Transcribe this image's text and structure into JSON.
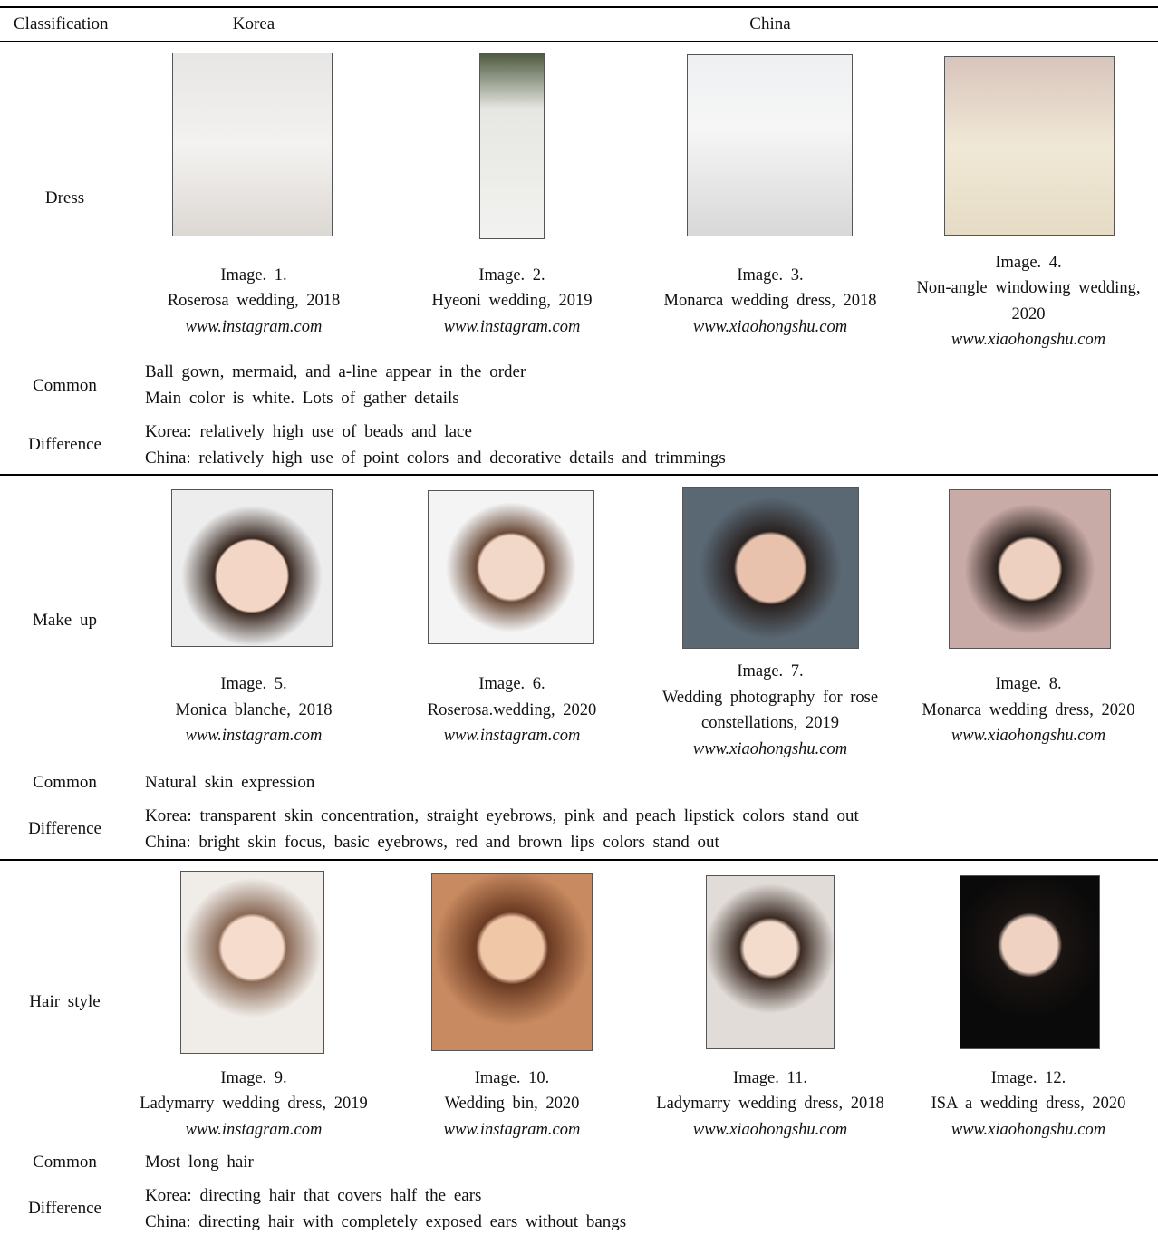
{
  "header": {
    "classification": "Classification",
    "korea": "Korea",
    "china": "China"
  },
  "sections": [
    {
      "label": "Dress",
      "images": [
        {
          "title": "Image. 1.",
          "source": "Roserosa wedding, 2018",
          "url": "www.instagram.com"
        },
        {
          "title": "Image. 2.",
          "source": "Hyeoni wedding, 2019",
          "url": "www.instagram.com"
        },
        {
          "title": "Image. 3.",
          "source": "Monarca wedding dress, 2018",
          "url": "www.xiaohongshu.com"
        },
        {
          "title": "Image. 4.",
          "source": "Non-angle windowing wedding, 2020",
          "url": "www.xiaohongshu.com"
        }
      ],
      "common_label": "Common",
      "common": [
        "Ball gown, mermaid, and a-line appear in the order",
        "Main color is white. Lots of gather details"
      ],
      "difference_label": "Difference",
      "difference": [
        "Korea: relatively high use of beads and lace",
        "China: relatively high use of point colors and decorative details and trimmings"
      ]
    },
    {
      "label": "Make up",
      "images": [
        {
          "title": "Image. 5.",
          "source": "Monica blanche, 2018",
          "url": "www.instagram.com"
        },
        {
          "title": "Image. 6.",
          "source": "Roserosa.wedding, 2020",
          "url": "www.instagram.com"
        },
        {
          "title": "Image. 7.",
          "source": "Wedding photography for rose constellations, 2019",
          "url": "www.xiaohongshu.com"
        },
        {
          "title": "Image. 8.",
          "source": "Monarca wedding dress, 2020",
          "url": "www.xiaohongshu.com"
        }
      ],
      "common_label": "Common",
      "common": [
        "Natural skin expression"
      ],
      "difference_label": "Difference",
      "difference": [
        "Korea: transparent skin concentration, straight eyebrows, pink and peach lipstick colors stand out",
        "China: bright skin focus, basic eyebrows, red and brown lips colors stand out"
      ]
    },
    {
      "label": "Hair style",
      "images": [
        {
          "title": "Image. 9.",
          "source": "Ladymarry wedding dress, 2019",
          "url": "www.instagram.com"
        },
        {
          "title": "Image. 10.",
          "source": "Wedding bin, 2020",
          "url": "www.instagram.com"
        },
        {
          "title": "Image. 11.",
          "source": "Ladymarry wedding dress, 2018",
          "url": "www.xiaohongshu.com"
        },
        {
          "title": "Image. 12.",
          "source": "ISA a wedding dress, 2020",
          "url": "www.xiaohongshu.com"
        }
      ],
      "common_label": "Common",
      "common": [
        "Most long hair"
      ],
      "difference_label": "Difference",
      "difference": [
        "Korea: directing hair that covers half the ears",
        "China: directing hair with completely exposed ears without bangs"
      ]
    }
  ]
}
